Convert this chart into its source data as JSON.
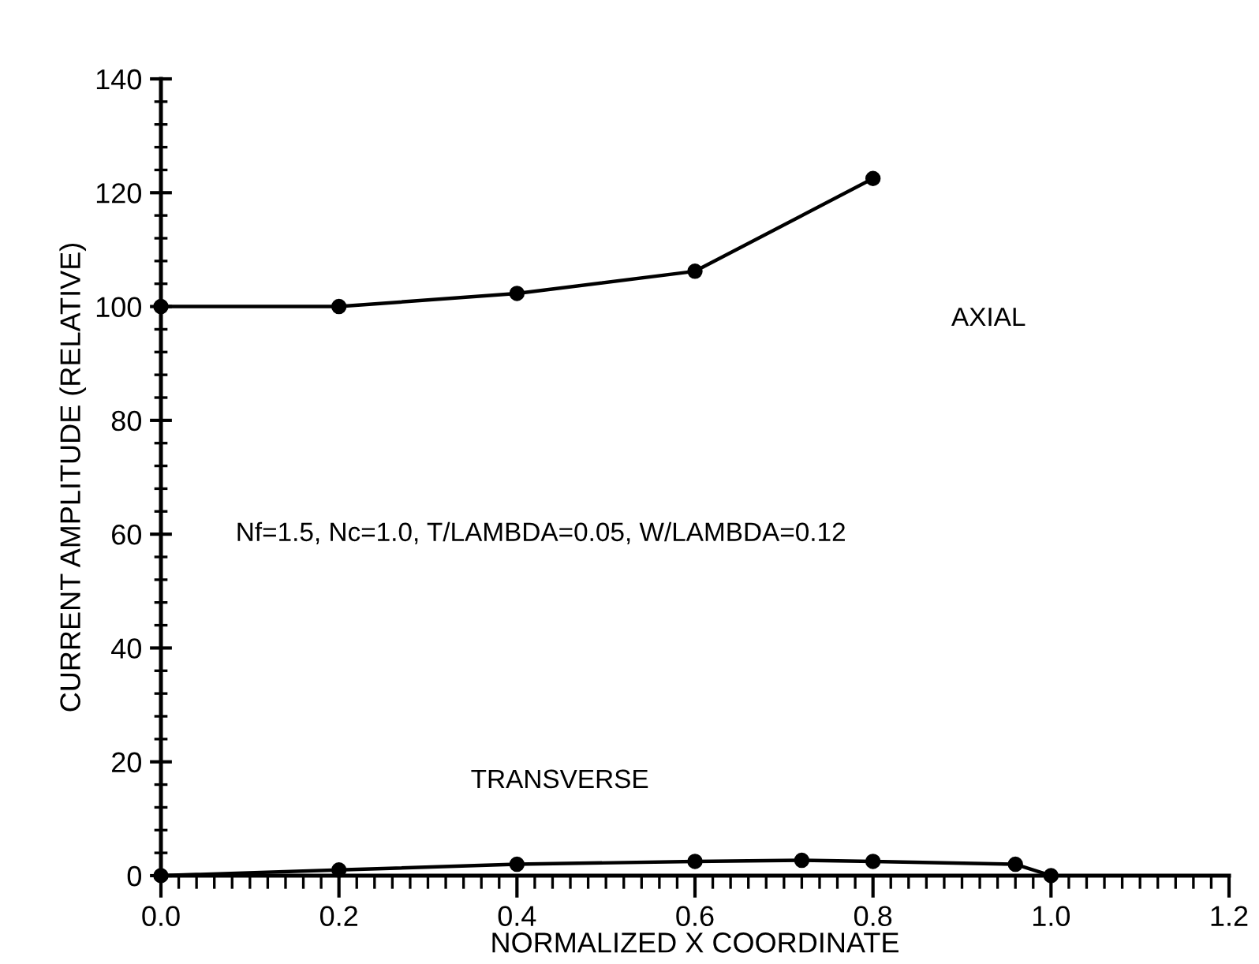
{
  "chart_data": {
    "type": "line",
    "xlabel": "NORMALIZED X COORDINATE",
    "ylabel": "CURRENT AMPLITUDE (RELATIVE)",
    "xlim": [
      0,
      1.2
    ],
    "xticks": [
      {
        "value": 0,
        "label": "0.0"
      },
      0.2,
      0.4,
      0.6,
      0.8,
      {
        "value": 1,
        "label": "1.0"
      },
      {
        "value": 1.2,
        "label": "1.2"
      }
    ],
    "ylim": [
      0,
      140
    ],
    "yticks": [
      0,
      20,
      40,
      60,
      80,
      100,
      120,
      140
    ],
    "marker": "circle",
    "line_style": "solid",
    "grid": false,
    "legend": false,
    "series": [
      {
        "x": [
          0,
          0.2,
          0.4,
          0.6,
          0.8
        ],
        "values": [
          100,
          100,
          102.3,
          106.2,
          122.5
        ],
        "color": "#000000"
      },
      {
        "x": [
          0,
          0.2,
          0.4,
          0.6,
          0.72,
          0.8,
          0.96,
          1.0
        ],
        "values": [
          0,
          1,
          2,
          2.5,
          2.7,
          2.5,
          2,
          0
        ],
        "color": "#000000"
      }
    ],
    "annotations": [
      "AXIAL",
      "TRANSVERSE",
      "Nf=1.5, Nc=1.0, T/LAMBDA=0.05, W/LAMBDA=0.12"
    ]
  }
}
